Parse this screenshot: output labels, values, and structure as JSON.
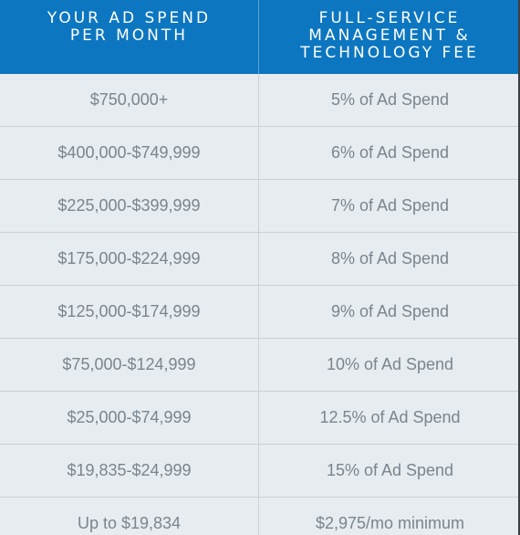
{
  "header": {
    "col1": "YOUR AD SPEND\nPER MONTH",
    "col2": "FULL-SERVICE\nMANAGEMENT &\nTECHNOLOGY FEE"
  },
  "rows": [
    {
      "spend": "$750,000+",
      "fee": "5% of Ad Spend"
    },
    {
      "spend": "$400,000-$749,999",
      "fee": "6% of Ad Spend"
    },
    {
      "spend": "$225,000-$399,999",
      "fee": "7% of Ad Spend"
    },
    {
      "spend": "$175,000-$224,999",
      "fee": "8% of Ad Spend"
    },
    {
      "spend": "$125,000-$174,999",
      "fee": "9% of Ad Spend"
    },
    {
      "spend": "$75,000-$124,999",
      "fee": "10% of Ad Spend"
    },
    {
      "spend": "$25,000-$74,999",
      "fee": "12.5% of Ad Spend"
    },
    {
      "spend": "$19,835-$24,999",
      "fee": "15% of Ad Spend"
    },
    {
      "spend": "Up to $19,834",
      "fee": "$2,975/mo minimum"
    }
  ],
  "colors": {
    "header_bg": "#0c76c0",
    "row_bg": "#e7ecf0",
    "text": "#7a858e"
  }
}
